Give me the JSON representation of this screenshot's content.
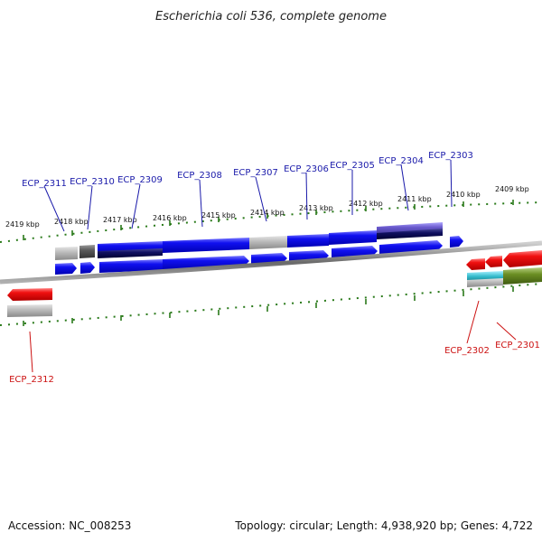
{
  "title": "Escherichia coli 536, complete genome",
  "footer": {
    "accession": "Accession: NC_008253",
    "summary": "Topology: circular; Length: 4,938,920 bp; Genes: 4,722"
  },
  "colors": {
    "background": "#ffffff",
    "forward_gene": "#0000ee",
    "forward_label": "#1a1aaa",
    "reverse_gene": "#ee0000",
    "reverse_label": "#cc1111",
    "ruler_tick": "#2a7a1a",
    "backbone": "#707070",
    "grey_feature": "#a0a0a0",
    "dark_grey_feature": "#555555",
    "dark_navy_feature": "#0a0a50",
    "purple_feature": "#6a5acd",
    "cyan_feature": "#33bbcc",
    "olive_feature": "#6b8e23"
  },
  "ruler_labels": [
    "2419 kbp",
    "2418 kbp",
    "2417 kbp",
    "2416 kbp",
    "2415 kbp",
    "2414 kbp",
    "2413 kbp",
    "2412 kbp",
    "2411 kbp",
    "2410 kbp",
    "2409 kbp"
  ],
  "forward_gene_labels": [
    "ECP_2311",
    "ECP_2310",
    "ECP_2309",
    "ECP_2308",
    "ECP_2307",
    "ECP_2306",
    "ECP_2305",
    "ECP_2304",
    "ECP_2303"
  ],
  "reverse_gene_labels": [
    "ECP_2312",
    "ECP_2302",
    "ECP_2301"
  ]
}
